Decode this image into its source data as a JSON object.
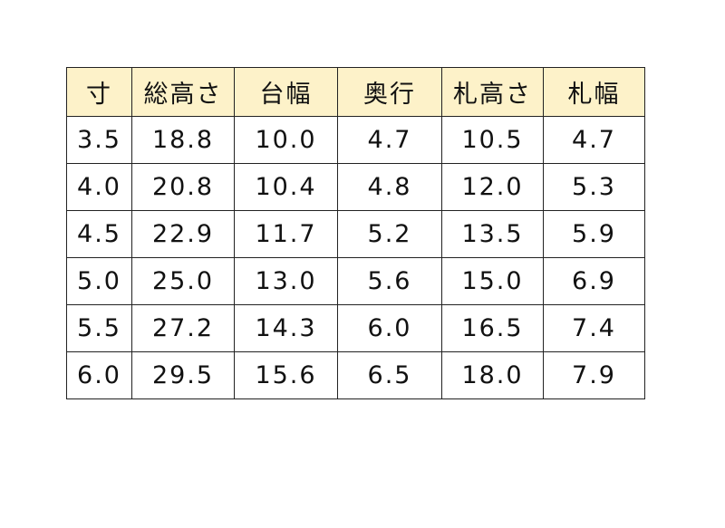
{
  "table": {
    "header": [
      "寸",
      "総高さ",
      "台幅",
      "奥行",
      "札高さ",
      "札幅"
    ],
    "rows": [
      [
        "3.5",
        "18.8",
        "10.0",
        "4.7",
        "10.5",
        "4.7"
      ],
      [
        "4.0",
        "20.8",
        "10.4",
        "4.8",
        "12.0",
        "5.3"
      ],
      [
        "4.5",
        "22.9",
        "11.7",
        "5.2",
        "13.5",
        "5.9"
      ],
      [
        "5.0",
        "25.0",
        "13.0",
        "5.6",
        "15.0",
        "6.9"
      ],
      [
        "5.5",
        "27.2",
        "14.3",
        "6.0",
        "16.5",
        "7.4"
      ],
      [
        "6.0",
        "29.5",
        "15.6",
        "6.5",
        "18.0",
        "7.9"
      ]
    ]
  }
}
